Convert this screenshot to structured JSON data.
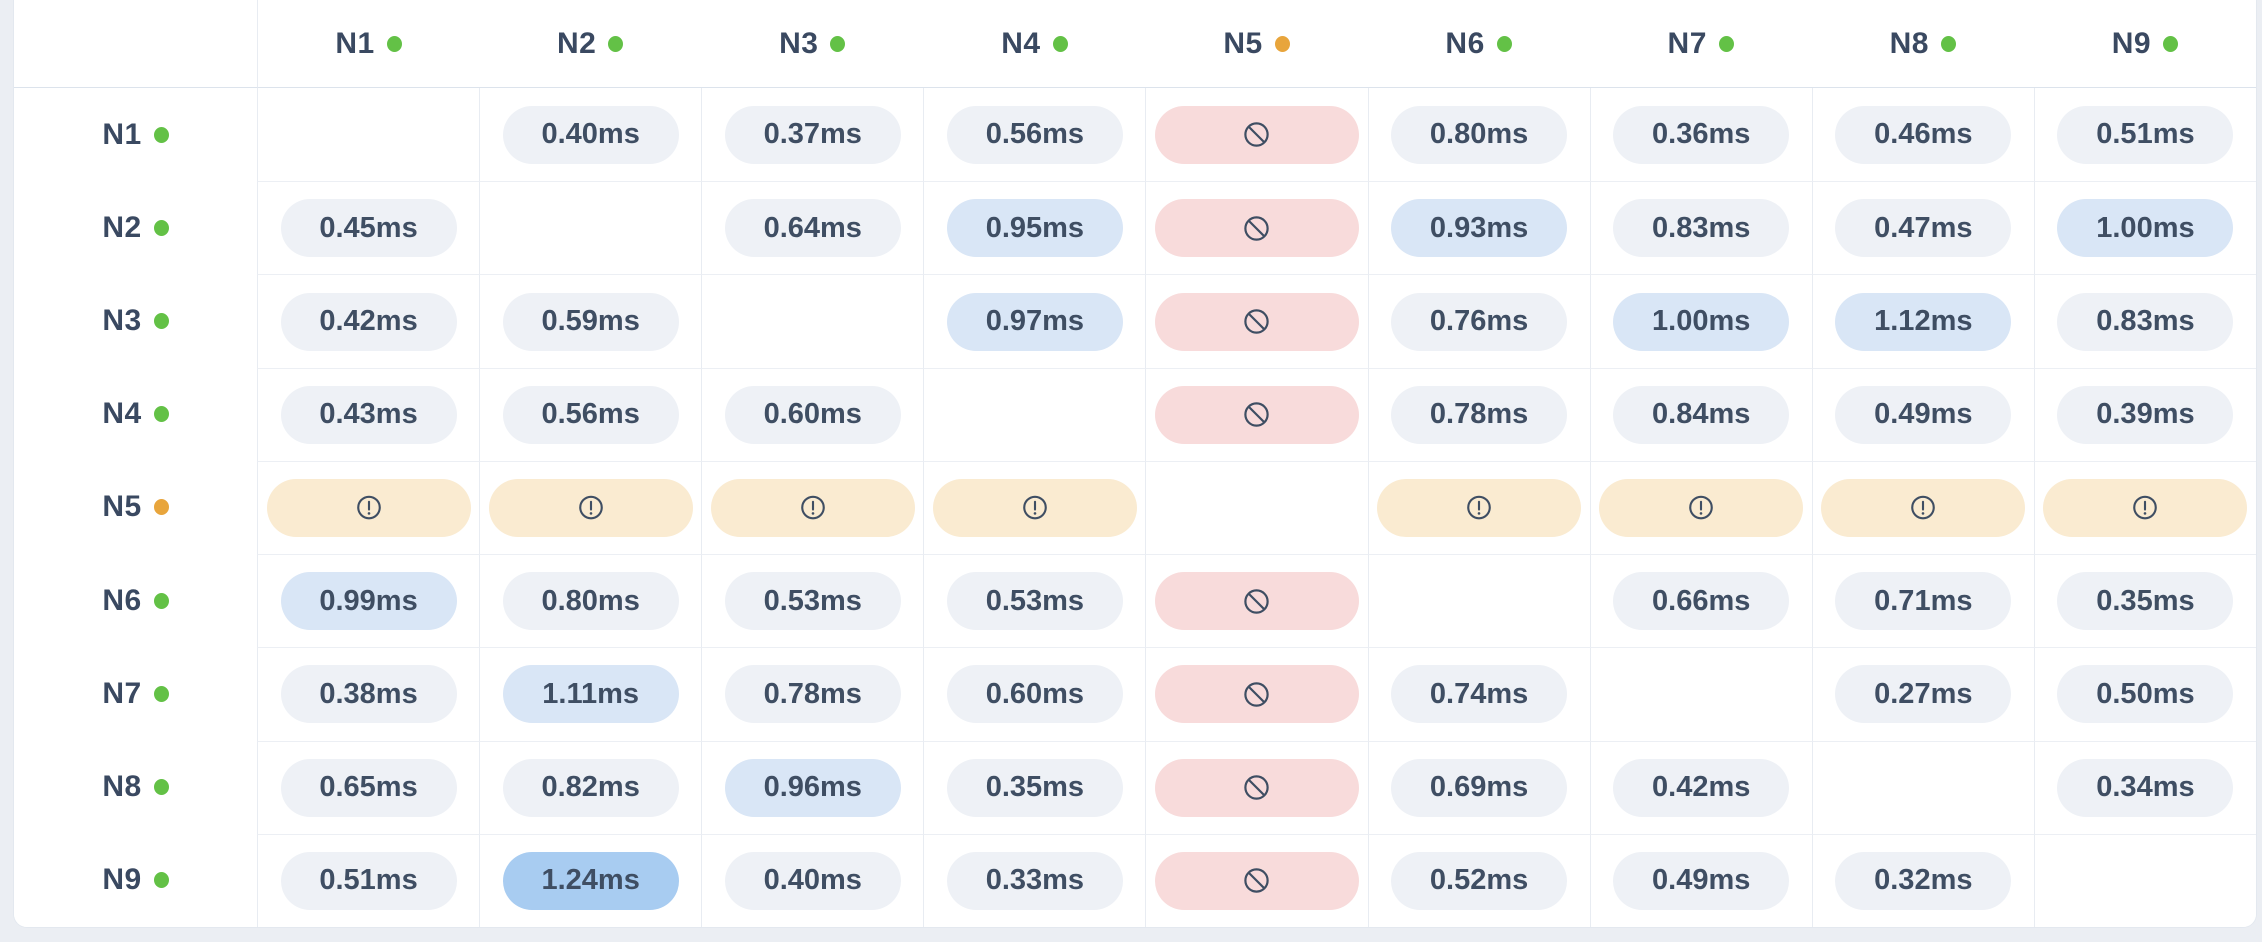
{
  "matrix": {
    "unit": "ms",
    "columns": [
      {
        "label": "N1",
        "status": "up"
      },
      {
        "label": "N2",
        "status": "up"
      },
      {
        "label": "N3",
        "status": "up"
      },
      {
        "label": "N4",
        "status": "up"
      },
      {
        "label": "N5",
        "status": "warn"
      },
      {
        "label": "N6",
        "status": "up"
      },
      {
        "label": "N7",
        "status": "up"
      },
      {
        "label": "N8",
        "status": "up"
      },
      {
        "label": "N9",
        "status": "up"
      }
    ],
    "rows": [
      {
        "label": "N1",
        "status": "up",
        "cells": [
          {
            "type": "self"
          },
          {
            "type": "value",
            "text": "0.40ms",
            "tone": "normal"
          },
          {
            "type": "value",
            "text": "0.37ms",
            "tone": "normal"
          },
          {
            "type": "value",
            "text": "0.56ms",
            "tone": "normal"
          },
          {
            "type": "blocked"
          },
          {
            "type": "value",
            "text": "0.80ms",
            "tone": "normal"
          },
          {
            "type": "value",
            "text": "0.36ms",
            "tone": "normal"
          },
          {
            "type": "value",
            "text": "0.46ms",
            "tone": "normal"
          },
          {
            "type": "value",
            "text": "0.51ms",
            "tone": "normal"
          }
        ]
      },
      {
        "label": "N2",
        "status": "up",
        "cells": [
          {
            "type": "value",
            "text": "0.45ms",
            "tone": "normal"
          },
          {
            "type": "self"
          },
          {
            "type": "value",
            "text": "0.64ms",
            "tone": "normal"
          },
          {
            "type": "value",
            "text": "0.95ms",
            "tone": "high"
          },
          {
            "type": "blocked"
          },
          {
            "type": "value",
            "text": "0.93ms",
            "tone": "high"
          },
          {
            "type": "value",
            "text": "0.83ms",
            "tone": "normal"
          },
          {
            "type": "value",
            "text": "0.47ms",
            "tone": "normal"
          },
          {
            "type": "value",
            "text": "1.00ms",
            "tone": "high"
          }
        ]
      },
      {
        "label": "N3",
        "status": "up",
        "cells": [
          {
            "type": "value",
            "text": "0.42ms",
            "tone": "normal"
          },
          {
            "type": "value",
            "text": "0.59ms",
            "tone": "normal"
          },
          {
            "type": "self"
          },
          {
            "type": "value",
            "text": "0.97ms",
            "tone": "high"
          },
          {
            "type": "blocked"
          },
          {
            "type": "value",
            "text": "0.76ms",
            "tone": "normal"
          },
          {
            "type": "value",
            "text": "1.00ms",
            "tone": "high"
          },
          {
            "type": "value",
            "text": "1.12ms",
            "tone": "high"
          },
          {
            "type": "value",
            "text": "0.83ms",
            "tone": "normal"
          }
        ]
      },
      {
        "label": "N4",
        "status": "up",
        "cells": [
          {
            "type": "value",
            "text": "0.43ms",
            "tone": "normal"
          },
          {
            "type": "value",
            "text": "0.56ms",
            "tone": "normal"
          },
          {
            "type": "value",
            "text": "0.60ms",
            "tone": "normal"
          },
          {
            "type": "self"
          },
          {
            "type": "blocked"
          },
          {
            "type": "value",
            "text": "0.78ms",
            "tone": "normal"
          },
          {
            "type": "value",
            "text": "0.84ms",
            "tone": "normal"
          },
          {
            "type": "value",
            "text": "0.49ms",
            "tone": "normal"
          },
          {
            "type": "value",
            "text": "0.39ms",
            "tone": "normal"
          }
        ]
      },
      {
        "label": "N5",
        "status": "warn",
        "cells": [
          {
            "type": "warning"
          },
          {
            "type": "warning"
          },
          {
            "type": "warning"
          },
          {
            "type": "warning"
          },
          {
            "type": "self"
          },
          {
            "type": "warning"
          },
          {
            "type": "warning"
          },
          {
            "type": "warning"
          },
          {
            "type": "warning"
          }
        ]
      },
      {
        "label": "N6",
        "status": "up",
        "cells": [
          {
            "type": "value",
            "text": "0.99ms",
            "tone": "high"
          },
          {
            "type": "value",
            "text": "0.80ms",
            "tone": "normal"
          },
          {
            "type": "value",
            "text": "0.53ms",
            "tone": "normal"
          },
          {
            "type": "value",
            "text": "0.53ms",
            "tone": "normal"
          },
          {
            "type": "blocked"
          },
          {
            "type": "self"
          },
          {
            "type": "value",
            "text": "0.66ms",
            "tone": "normal"
          },
          {
            "type": "value",
            "text": "0.71ms",
            "tone": "normal"
          },
          {
            "type": "value",
            "text": "0.35ms",
            "tone": "normal"
          }
        ]
      },
      {
        "label": "N7",
        "status": "up",
        "cells": [
          {
            "type": "value",
            "text": "0.38ms",
            "tone": "normal"
          },
          {
            "type": "value",
            "text": "1.11ms",
            "tone": "high"
          },
          {
            "type": "value",
            "text": "0.78ms",
            "tone": "normal"
          },
          {
            "type": "value",
            "text": "0.60ms",
            "tone": "normal"
          },
          {
            "type": "blocked"
          },
          {
            "type": "value",
            "text": "0.74ms",
            "tone": "normal"
          },
          {
            "type": "self"
          },
          {
            "type": "value",
            "text": "0.27ms",
            "tone": "normal"
          },
          {
            "type": "value",
            "text": "0.50ms",
            "tone": "normal"
          }
        ]
      },
      {
        "label": "N8",
        "status": "up",
        "cells": [
          {
            "type": "value",
            "text": "0.65ms",
            "tone": "normal"
          },
          {
            "type": "value",
            "text": "0.82ms",
            "tone": "normal"
          },
          {
            "type": "value",
            "text": "0.96ms",
            "tone": "high"
          },
          {
            "type": "value",
            "text": "0.35ms",
            "tone": "normal"
          },
          {
            "type": "blocked"
          },
          {
            "type": "value",
            "text": "0.69ms",
            "tone": "normal"
          },
          {
            "type": "value",
            "text": "0.42ms",
            "tone": "normal"
          },
          {
            "type": "self"
          },
          {
            "type": "value",
            "text": "0.34ms",
            "tone": "normal"
          }
        ]
      },
      {
        "label": "N9",
        "status": "up",
        "cells": [
          {
            "type": "value",
            "text": "0.51ms",
            "tone": "normal"
          },
          {
            "type": "value",
            "text": "1.24ms",
            "tone": "higher"
          },
          {
            "type": "value",
            "text": "0.40ms",
            "tone": "normal"
          },
          {
            "type": "value",
            "text": "0.33ms",
            "tone": "normal"
          },
          {
            "type": "blocked"
          },
          {
            "type": "value",
            "text": "0.52ms",
            "tone": "normal"
          },
          {
            "type": "value",
            "text": "0.49ms",
            "tone": "normal"
          },
          {
            "type": "value",
            "text": "0.32ms",
            "tone": "normal"
          },
          {
            "type": "self"
          }
        ]
      }
    ]
  },
  "icons": {
    "blocked": "ban-icon",
    "warning": "alert-circle-icon",
    "status": "status-dot-icon"
  },
  "colors": {
    "text": "#3f4e63",
    "status_up": "#63c146",
    "status_warn": "#e8a53c",
    "pill_normal": "#eef1f6",
    "pill_high": "#d9e6f6",
    "pill_higher": "#a8ccf1",
    "pill_blocked": "#f8dbdb",
    "pill_warning": "#faebd1"
  }
}
